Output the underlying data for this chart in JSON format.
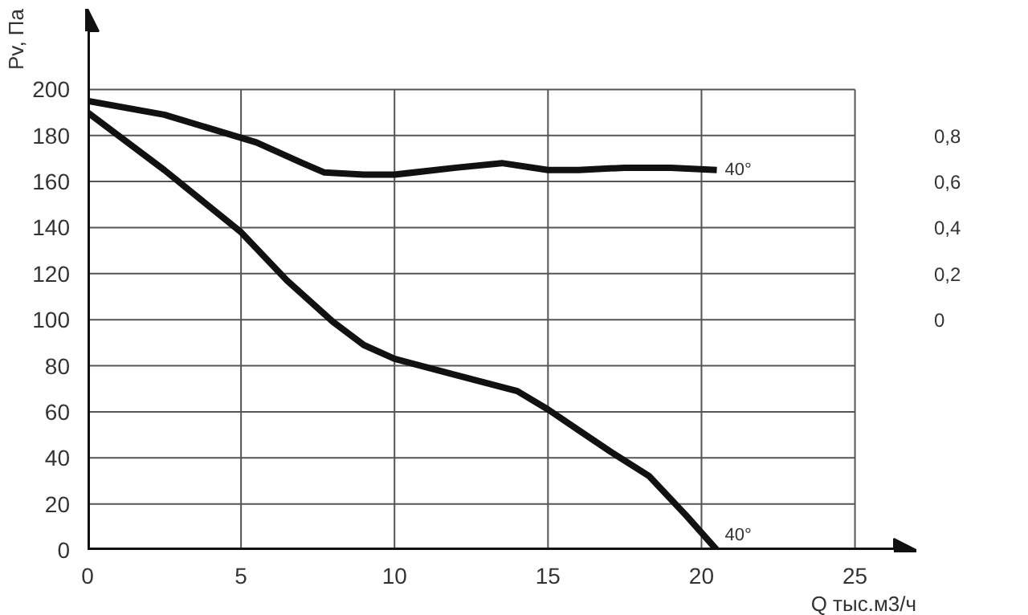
{
  "chart_data": {
    "type": "line",
    "xlabel": "Q тыс.м3/ч",
    "ylabel": "Pv, Па",
    "xlim": [
      0,
      27
    ],
    "ylim": [
      0,
      235
    ],
    "xticks": [
      0,
      5,
      10,
      15,
      20,
      25
    ],
    "yticks": [
      0,
      20,
      40,
      60,
      80,
      100,
      120,
      140,
      160,
      180,
      200
    ],
    "y2lim": [
      -1,
      1.35
    ],
    "y2ticks": [
      {
        "value": 0,
        "label": "0"
      },
      {
        "value": 0.2,
        "label": "0,2"
      },
      {
        "value": 0.4,
        "label": "0,4"
      },
      {
        "value": 0.6,
        "label": "0,6"
      },
      {
        "value": 0.8,
        "label": "0,8"
      }
    ],
    "grid": true,
    "line_style": "solid",
    "marker": "none",
    "series": [
      {
        "color": "#111111",
        "x": [
          0,
          2.5,
          4,
          5.5,
          7,
          7.7,
          9,
          10,
          12,
          13.5,
          15,
          16,
          17.5,
          19,
          20.5
        ],
        "values": [
          195,
          189,
          183,
          177,
          168,
          164,
          163,
          163,
          166,
          168,
          165,
          165,
          166,
          166,
          165
        ]
      },
      {
        "color": "#111111",
        "x": [
          0,
          2.5,
          5,
          6.5,
          8,
          9,
          10,
          12,
          14,
          15,
          16,
          17,
          18.3,
          19.5,
          20.5
        ],
        "values": [
          190,
          165,
          138,
          117,
          99,
          89,
          83,
          76,
          69,
          61,
          52,
          43,
          32,
          15,
          0
        ]
      }
    ],
    "annotations": [
      {
        "text": "40°",
        "x": 20.5,
        "y": 165
      },
      {
        "text": "40°",
        "x": 20.5,
        "y": 0
      }
    ]
  }
}
